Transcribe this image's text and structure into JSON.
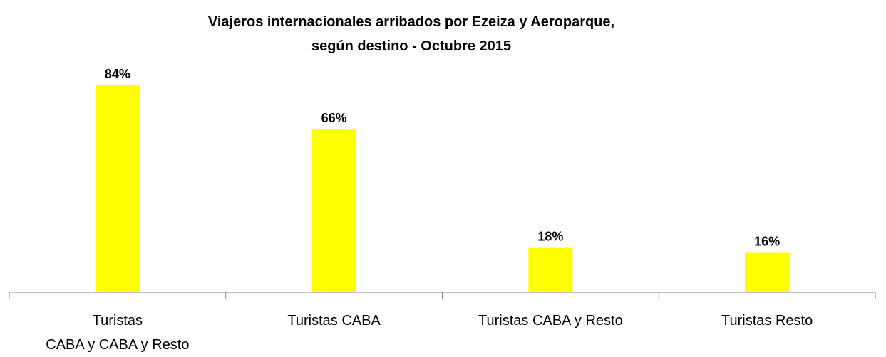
{
  "chart_data": {
    "type": "bar",
    "title": "Viajeros internacionales arribados por Ezeiza y Aeroparque,\nsegún destino - Octubre 2015",
    "categories": [
      "Turistas\nCABA y CABA y Resto",
      "Turistas CABA",
      "Turistas CABA y Resto",
      "Turistas Resto"
    ],
    "values": [
      84,
      66,
      18,
      16
    ],
    "value_labels": [
      "84%",
      "66%",
      "18%",
      "16%"
    ],
    "color": "#ffff00",
    "ylim": [
      0,
      90
    ]
  }
}
